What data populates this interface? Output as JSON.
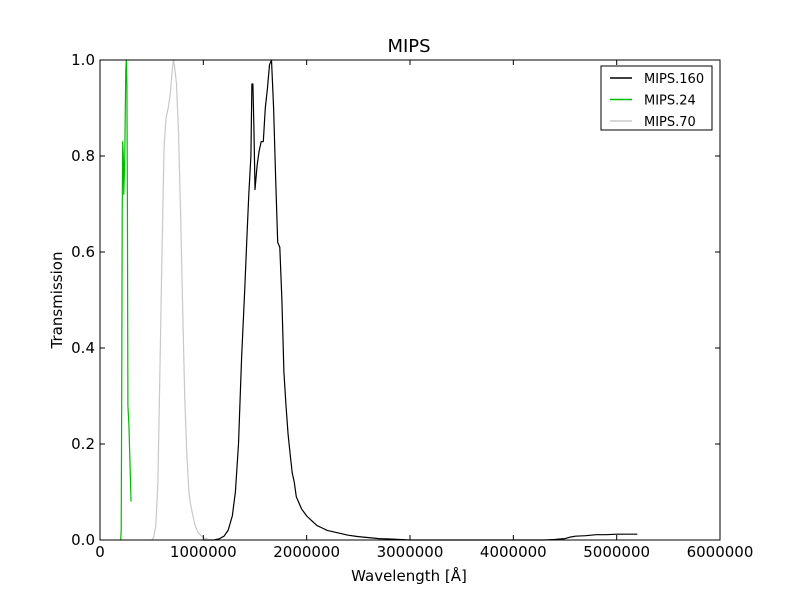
{
  "chart_data": {
    "type": "line",
    "title": "MIPS",
    "xlabel": "Wavelength [Å]",
    "ylabel": "Transmission",
    "xlim": [
      0,
      6000000
    ],
    "ylim": [
      0.0,
      1.0
    ],
    "xticks": [
      0,
      1000000,
      2000000,
      3000000,
      4000000,
      5000000,
      6000000
    ],
    "xtick_labels": [
      "0",
      "1000000",
      "2000000",
      "3000000",
      "4000000",
      "5000000",
      "6000000"
    ],
    "yticks": [
      0.0,
      0.2,
      0.4,
      0.6,
      0.8,
      1.0
    ],
    "ytick_labels": [
      "0.0",
      "0.2",
      "0.4",
      "0.6",
      "0.8",
      "1.0"
    ],
    "grid": false,
    "legend_position": "top-right",
    "series": [
      {
        "name": "MIPS.160",
        "color": "#000000",
        "x": [
          1000000,
          1100000,
          1150000,
          1200000,
          1240000,
          1280000,
          1310000,
          1340000,
          1370000,
          1400000,
          1420000,
          1440000,
          1460000,
          1470000,
          1480000,
          1490000,
          1500000,
          1520000,
          1540000,
          1560000,
          1580000,
          1600000,
          1620000,
          1640000,
          1660000,
          1680000,
          1700000,
          1720000,
          1740000,
          1760000,
          1780000,
          1800000,
          1820000,
          1840000,
          1860000,
          1880000,
          1900000,
          1950000,
          2000000,
          2050000,
          2100000,
          2150000,
          2200000,
          2300000,
          2400000,
          2500000,
          2600000,
          2700000,
          2800000,
          2900000,
          3000000,
          3200000,
          3500000,
          4000000,
          4300000,
          4400000,
          4450000,
          4500000,
          4550000,
          4600000,
          4700000,
          4800000,
          4900000,
          5000000,
          5100000,
          5200000
        ],
        "y": [
          0.0,
          0.0,
          0.002,
          0.008,
          0.02,
          0.05,
          0.1,
          0.2,
          0.38,
          0.52,
          0.62,
          0.72,
          0.8,
          0.95,
          0.95,
          0.85,
          0.73,
          0.78,
          0.81,
          0.83,
          0.83,
          0.9,
          0.94,
          0.99,
          1.0,
          0.9,
          0.75,
          0.62,
          0.61,
          0.5,
          0.35,
          0.28,
          0.22,
          0.18,
          0.14,
          0.12,
          0.09,
          0.065,
          0.05,
          0.04,
          0.03,
          0.025,
          0.02,
          0.015,
          0.01,
          0.007,
          0.005,
          0.003,
          0.002,
          0.001,
          0.0,
          0.0,
          0.0,
          0.0,
          0.0,
          0.001,
          0.002,
          0.003,
          0.006,
          0.008,
          0.009,
          0.011,
          0.011,
          0.012,
          0.012,
          0.012
        ]
      },
      {
        "name": "MIPS.24",
        "color": "#00bb00",
        "x": [
          200000,
          205000,
          210000,
          215000,
          220000,
          225000,
          230000,
          235000,
          240000,
          245000,
          250000,
          255000,
          260000,
          265000,
          270000,
          280000,
          290000,
          300000
        ],
        "y": [
          0.0,
          0.02,
          0.3,
          0.68,
          0.83,
          0.8,
          0.72,
          0.76,
          0.8,
          0.9,
          0.98,
          1.0,
          0.95,
          0.7,
          0.28,
          0.24,
          0.16,
          0.08
        ]
      },
      {
        "name": "MIPS.70",
        "color": "#c8c8c8",
        "x": [
          500000,
          520000,
          540000,
          560000,
          580000,
          600000,
          620000,
          640000,
          660000,
          680000,
          700000,
          710000,
          720000,
          740000,
          760000,
          780000,
          800000,
          820000,
          840000,
          860000,
          880000,
          900000,
          920000,
          950000,
          1000000,
          1050000,
          1100000
        ],
        "y": [
          0.0,
          0.005,
          0.03,
          0.12,
          0.35,
          0.6,
          0.82,
          0.88,
          0.9,
          0.93,
          0.98,
          1.0,
          0.99,
          0.95,
          0.85,
          0.68,
          0.48,
          0.3,
          0.18,
          0.1,
          0.07,
          0.05,
          0.03,
          0.015,
          0.005,
          0.001,
          0.0
        ]
      }
    ]
  }
}
